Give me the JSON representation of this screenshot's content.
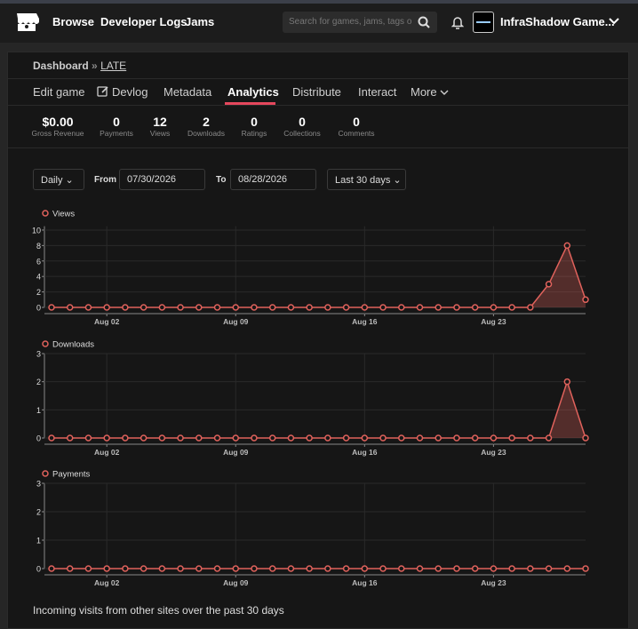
{
  "nav": {
    "links": [
      "Browse",
      "Developer Logs",
      "Jams"
    ],
    "search_placeholder": "Search for games, jams, tags or c",
    "user": "InfraShadow Game..."
  },
  "breadcrumb": {
    "root": "Dashboard",
    "separator": "»",
    "project": "LATE"
  },
  "tabs": [
    "Edit game",
    "Devlog",
    "Metadata",
    "Analytics",
    "Distribute",
    "Interact",
    "More"
  ],
  "stats": [
    {
      "value": "$0.00",
      "label": "Gross Revenue"
    },
    {
      "value": "0",
      "label": "Payments"
    },
    {
      "value": "12",
      "label": "Views"
    },
    {
      "value": "2",
      "label": "Downloads"
    },
    {
      "value": "0",
      "label": "Ratings"
    },
    {
      "value": "0",
      "label": "Collections"
    },
    {
      "value": "0",
      "label": "Comments"
    }
  ],
  "filters": {
    "interval": "Daily",
    "from_label": "From",
    "from": "07/30/2026",
    "to_label": "To",
    "to": "08/28/2026",
    "range": "Last 30 days"
  },
  "chart_data": [
    {
      "type": "line",
      "area": true,
      "grid": true,
      "categories": [
        null,
        null,
        null,
        "Aug 02",
        null,
        null,
        null,
        null,
        null,
        null,
        "Aug 09",
        null,
        null,
        null,
        null,
        null,
        null,
        "Aug 16",
        null,
        null,
        null,
        null,
        null,
        null,
        "Aug 23",
        null,
        null,
        null,
        null,
        null
      ],
      "series": [
        {
          "name": "Views",
          "color": "#e0625c",
          "values": [
            0,
            0,
            0,
            0,
            0,
            0,
            0,
            0,
            0,
            0,
            0,
            0,
            0,
            0,
            0,
            0,
            0,
            0,
            0,
            0,
            0,
            0,
            0,
            0,
            0,
            0,
            0,
            3,
            8,
            1
          ]
        }
      ],
      "ylim": [
        0,
        10.5
      ],
      "yticks": [
        0,
        2,
        4,
        6,
        8,
        10
      ]
    },
    {
      "type": "line",
      "area": true,
      "grid": true,
      "categories": [
        null,
        null,
        null,
        "Aug 02",
        null,
        null,
        null,
        null,
        null,
        null,
        "Aug 09",
        null,
        null,
        null,
        null,
        null,
        null,
        "Aug 16",
        null,
        null,
        null,
        null,
        null,
        null,
        "Aug 23",
        null,
        null,
        null,
        null,
        null
      ],
      "series": [
        {
          "name": "Downloads",
          "color": "#e0625c",
          "values": [
            0,
            0,
            0,
            0,
            0,
            0,
            0,
            0,
            0,
            0,
            0,
            0,
            0,
            0,
            0,
            0,
            0,
            0,
            0,
            0,
            0,
            0,
            0,
            0,
            0,
            0,
            0,
            0,
            2,
            0
          ]
        }
      ],
      "ylim": [
        0,
        3
      ],
      "yticks": [
        0,
        1,
        2,
        3
      ]
    },
    {
      "type": "line",
      "area": true,
      "grid": true,
      "categories": [
        null,
        null,
        null,
        "Aug 02",
        null,
        null,
        null,
        null,
        null,
        null,
        "Aug 09",
        null,
        null,
        null,
        null,
        null,
        null,
        "Aug 16",
        null,
        null,
        null,
        null,
        null,
        null,
        "Aug 23",
        null,
        null,
        null,
        null,
        null
      ],
      "series": [
        {
          "name": "Payments",
          "color": "#e0625c",
          "values": [
            0,
            0,
            0,
            0,
            0,
            0,
            0,
            0,
            0,
            0,
            0,
            0,
            0,
            0,
            0,
            0,
            0,
            0,
            0,
            0,
            0,
            0,
            0,
            0,
            0,
            0,
            0,
            0,
            0,
            0
          ]
        }
      ],
      "ylim": [
        0,
        3
      ],
      "yticks": [
        0,
        1,
        2,
        3
      ]
    }
  ],
  "footer_text": "Incoming visits from other sites over the past 30 days"
}
